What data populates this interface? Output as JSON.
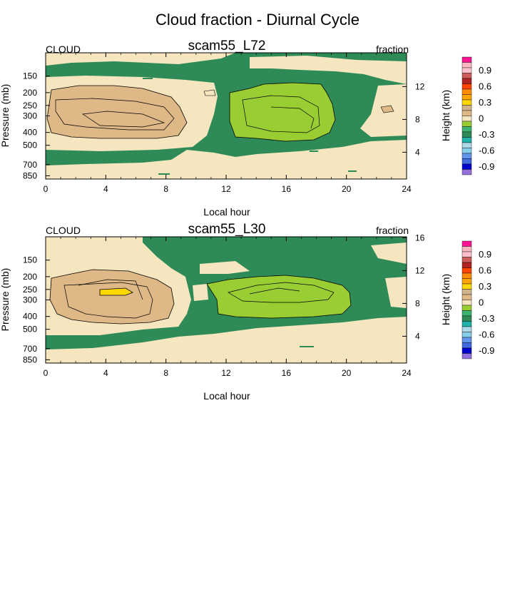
{
  "page": {
    "title": "Cloud fraction - Diurnal Cycle"
  },
  "palette": {
    "c_lo4": "#9370DB",
    "c_lo3": "#0000CD",
    "c_lo2": "#4169E1",
    "c_lo1": "#6495ED",
    "c_m6": "#87CEEB",
    "c_m5": "#ADD8E6",
    "c_m4": "#20B2AA",
    "c_m3": "#2E8B57",
    "c_m2": "#3CB371",
    "c_m1": "#9ACD32",
    "c_zero": "#F5E6C0",
    "c_p1": "#DEB887",
    "c_p2": "#D2B48C",
    "c_p3": "#FFD700",
    "c_p4": "#FFA500",
    "c_p5": "#FF8C00",
    "c_p6": "#FF4500",
    "c_p7": "#B22222",
    "c_p8": "#CD5C5C",
    "c_p9": "#FFC0CB",
    "c_p10": "#FFB6C1",
    "c_p11": "#FF1493",
    "background": "#F5E6C0",
    "positive": "#DEB887",
    "strong_positive": "#FFD700",
    "negative": "#2E8B57",
    "strong_negative": "#9ACD32"
  },
  "chart_data": [
    {
      "type": "heatmap",
      "title": "scam55_L72",
      "left_label": "CLOUD",
      "right_label": "fraction",
      "xlabel": "Local hour",
      "ylabel": "Pressure (mb)",
      "ylabel_right": "Height (km)",
      "xlim": [
        0,
        24
      ],
      "ylim": [
        900,
        100
      ],
      "x_ticks": [
        "0",
        "4",
        "8",
        "12",
        "16",
        "20",
        "24"
      ],
      "y_ticks": [
        "150",
        "200",
        "250",
        "300",
        "400",
        "500",
        "700",
        "850"
      ],
      "y_ticks_right": [
        "4",
        "8",
        "12"
      ],
      "colorbar_labels": [
        "0.9",
        "0.6",
        "0.3",
        "0",
        "-0.3",
        "-0.6",
        "-0.9"
      ],
      "regions": [
        {
          "sign": "negative",
          "x": [
            0,
            24
          ],
          "p": [
            100,
            900
          ],
          "level": "background"
        },
        {
          "sign": "zero",
          "x": [
            0,
            9.5
          ],
          "p": [
            200,
            540
          ],
          "level": "0"
        },
        {
          "sign": "positive",
          "x": [
            0.5,
            9
          ],
          "p": [
            210,
            480
          ],
          "level": "0.1"
        },
        {
          "sign": "zero",
          "x": [
            11.5,
            24
          ],
          "p": [
            560,
            880
          ],
          "level": "0"
        },
        {
          "sign": "zero",
          "x": [
            0,
            11
          ],
          "p": [
            100,
            120
          ],
          "level": "0"
        },
        {
          "sign": "zero",
          "x": [
            19,
            24
          ],
          "p": [
            110,
            180
          ],
          "level": "0"
        },
        {
          "sign": "strong_negative",
          "x": [
            11.5,
            19
          ],
          "p": [
            190,
            480
          ],
          "level": "-0.1"
        }
      ]
    },
    {
      "type": "heatmap",
      "title": "scam55_L30",
      "left_label": "CLOUD",
      "right_label": "fraction",
      "xlabel": "Local hour",
      "ylabel": "Pressure (mb)",
      "ylabel_right": "Height (km)",
      "xlim": [
        0,
        24
      ],
      "ylim": [
        900,
        100
      ],
      "x_ticks": [
        "0",
        "4",
        "8",
        "12",
        "16",
        "20",
        "24"
      ],
      "y_ticks": [
        "150",
        "200",
        "250",
        "300",
        "400",
        "500",
        "700",
        "850"
      ],
      "y_ticks_right": [
        "4",
        "8",
        "12",
        "16"
      ],
      "colorbar_labels": [
        "0.9",
        "0.6",
        "0.3",
        "0",
        "-0.3",
        "-0.6",
        "-0.9"
      ],
      "regions": [
        {
          "sign": "negative",
          "x": [
            0,
            24
          ],
          "p": [
            100,
            900
          ],
          "level": "background"
        },
        {
          "sign": "zero",
          "x": [
            0,
            9
          ],
          "p": [
            100,
            560
          ],
          "level": "0"
        },
        {
          "sign": "positive",
          "x": [
            0.5,
            8
          ],
          "p": [
            220,
            470
          ],
          "level": "0.1"
        },
        {
          "sign": "strong_positive",
          "x": [
            3.5,
            5.5
          ],
          "p": [
            270,
            290
          ],
          "level": "0.3"
        },
        {
          "sign": "zero",
          "x": [
            10.5,
            24
          ],
          "p": [
            600,
            900
          ],
          "level": "0"
        },
        {
          "sign": "strong_negative",
          "x": [
            11.5,
            21
          ],
          "p": [
            230,
            470
          ],
          "level": "-0.1"
        }
      ]
    }
  ]
}
